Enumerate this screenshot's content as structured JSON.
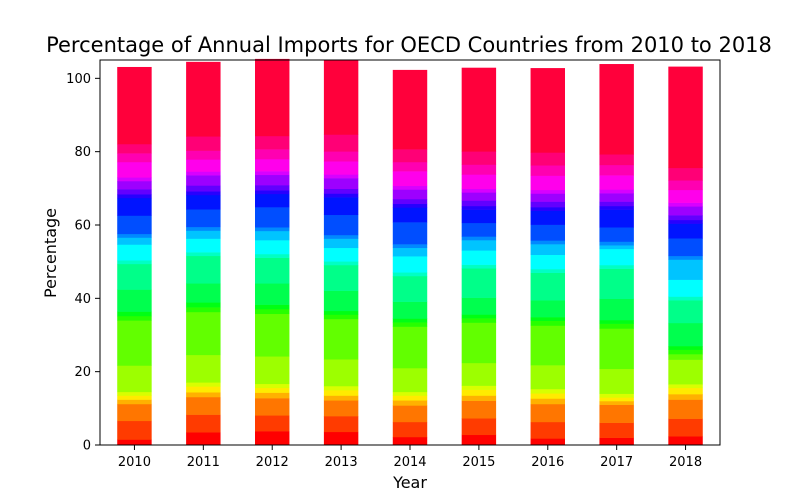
{
  "chart_data": {
    "type": "bar",
    "stacked": true,
    "title": "Percentage of Annual Imports for OECD Countries from 2010 to 2018",
    "xlabel": "Year",
    "ylabel": "Percentage",
    "categories": [
      "2010",
      "2011",
      "2012",
      "2013",
      "2014",
      "2015",
      "2016",
      "2017",
      "2018"
    ],
    "ylim": [
      0,
      105
    ],
    "yticks": [
      0,
      20,
      40,
      60,
      80,
      100
    ],
    "grid": false,
    "legend": "none",
    "colormap": "hsv",
    "segments": [
      [
        1.5,
        5.1,
        4.6,
        1.2,
        1.1,
        1.0,
        7.2,
        12.3,
        1.2,
        1.2,
        6.0,
        7.0,
        1.0,
        4.3,
        1.9,
        1.0,
        5.0,
        4.8,
        1.0,
        1.4,
        2.2,
        1.0,
        4.2,
        2.4,
        2.5,
        21.0
      ],
      [
        3.5,
        4.8,
        4.8,
        1.3,
        1.6,
        1.1,
        7.5,
        11.7,
        1.3,
        1.3,
        5.2,
        7.5,
        1.0,
        3.7,
        2.2,
        1.0,
        4.8,
        3.9,
        1.0,
        1.6,
        2.8,
        1.0,
        3.3,
        2.4,
        3.9,
        20.3
      ],
      [
        3.8,
        4.3,
        4.7,
        1.5,
        1.3,
        1.1,
        7.5,
        11.6,
        1.3,
        1.2,
        5.8,
        7.0,
        1.0,
        3.8,
        2.5,
        1.0,
        5.5,
        3.6,
        1.0,
        1.4,
        2.8,
        1.0,
        3.3,
        2.7,
        3.6,
        21.0
      ],
      [
        3.6,
        4.3,
        4.3,
        1.3,
        1.5,
        1.1,
        7.3,
        11.0,
        1.2,
        1.0,
        5.5,
        7.0,
        1.0,
        3.7,
        2.5,
        1.0,
        5.5,
        4.8,
        1.0,
        1.3,
        2.9,
        1.0,
        3.6,
        2.7,
        4.6,
        20.3
      ],
      [
        2.2,
        4.1,
        4.5,
        1.4,
        1.3,
        1.0,
        6.5,
        11.3,
        1.2,
        1.0,
        4.6,
        7.0,
        1.0,
        4.4,
        2.3,
        1.0,
        6.0,
        4.0,
        1.0,
        1.3,
        2.6,
        1.0,
        4.0,
        2.5,
        3.5,
        21.6
      ],
      [
        2.8,
        4.5,
        4.8,
        1.4,
        1.6,
        1.1,
        6.2,
        11.0,
        1.2,
        1.0,
        4.6,
        8.0,
        1.0,
        3.9,
        2.8,
        1.0,
        3.7,
        3.6,
        1.0,
        1.5,
        2.2,
        1.0,
        3.9,
        2.7,
        3.6,
        22.8
      ],
      [
        1.8,
        4.5,
        4.9,
        1.5,
        1.4,
        1.2,
        6.5,
        10.8,
        1.3,
        1.0,
        4.6,
        7.5,
        1.0,
        3.9,
        2.9,
        1.0,
        4.3,
        3.8,
        1.0,
        1.5,
        2.2,
        1.0,
        3.9,
        2.8,
        3.5,
        23.0
      ],
      [
        2.0,
        4.1,
        4.9,
        1.0,
        1.0,
        1.0,
        6.8,
        11.0,
        1.3,
        1.0,
        5.8,
        8.2,
        1.0,
        4.4,
        1.0,
        1.0,
        3.9,
        4.8,
        1.0,
        1.2,
        2.3,
        1.0,
        3.9,
        2.8,
        2.9,
        24.6
      ],
      [
        2.4,
        4.8,
        5.2,
        1.5,
        1.7,
        1.0,
        6.7,
        1.5,
        1.2,
        1.0,
        6.3,
        6.2,
        1.0,
        4.6,
        5.5,
        1.0,
        4.8,
        4.0,
        1.0,
        1.3,
        2.4,
        1.0,
        3.5,
        2.6,
        3.4,
        27.6
      ]
    ]
  }
}
